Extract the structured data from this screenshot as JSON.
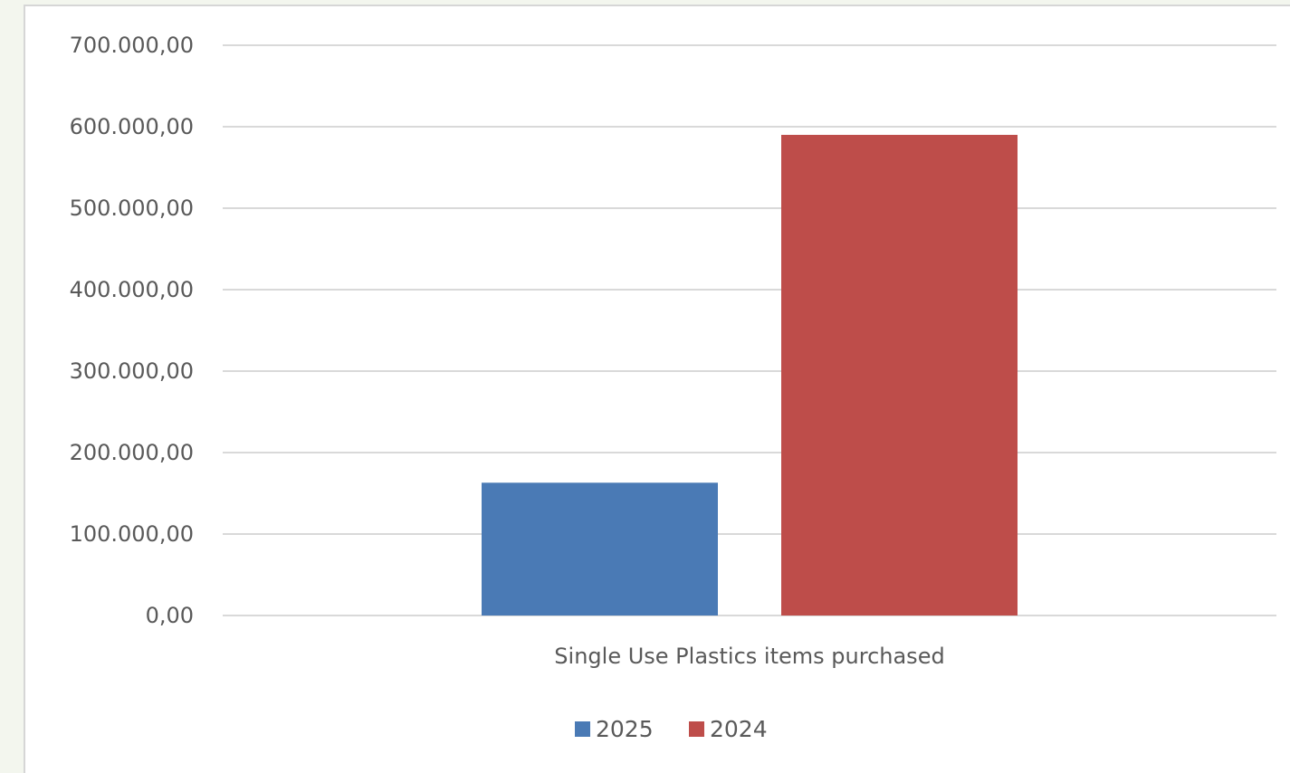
{
  "chart_data": {
    "type": "bar",
    "categories": [
      "Single Use Plastics items purchased"
    ],
    "series": [
      {
        "name": "2025",
        "values": [
          163000
        ],
        "color": "#4a7ab5"
      },
      {
        "name": "2024",
        "values": [
          590000
        ],
        "color": "#be4d4a"
      }
    ],
    "ylim": [
      0,
      700000
    ],
    "yticks": [
      0,
      100000,
      200000,
      300000,
      400000,
      500000,
      600000,
      700000
    ],
    "ytick_labels": [
      "0,00",
      "100.000,00",
      "200.000,00",
      "300.000,00",
      "400.000,00",
      "500.000,00",
      "600.000,00",
      "700.000,00"
    ],
    "grid": true,
    "legend_position": "bottom",
    "gridline_color": "#d9d9d9",
    "background": "#ffffff"
  }
}
